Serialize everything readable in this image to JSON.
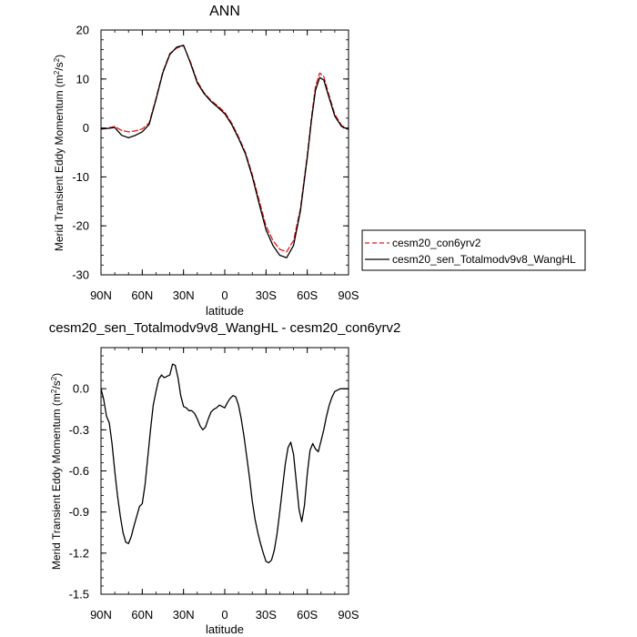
{
  "chart_data": [
    {
      "type": "line",
      "title": "ANN",
      "xlabel": "latitude",
      "ylabel": "Merid Transient Eddy Momentum (m²/s²)",
      "ylabel_main": "Merid Transient Eddy Momentum (m",
      "ylabel_units_sup": "2",
      "ylabel_units_mid": "/s",
      "ylabel_units_sup2": "2",
      "ylabel_units_end": ")",
      "xlim": [
        90,
        -90
      ],
      "ylim": [
        -30,
        20
      ],
      "x_ticks": [
        90,
        60,
        30,
        0,
        -30,
        -60,
        -90
      ],
      "x_tick_labels": [
        "90N",
        "60N",
        "30N",
        "0",
        "30S",
        "60S",
        "90S"
      ],
      "y_ticks": [
        20,
        10,
        0,
        -10,
        -20,
        -30
      ],
      "y_tick_labels": [
        "20",
        "10",
        "0",
        "-10",
        "-20",
        "-30"
      ],
      "legend_position": "right-outside",
      "series": [
        {
          "name": "cesm20_con6yrv2",
          "color": "#e41a1c",
          "dash": "dashed",
          "x": [
            90,
            85,
            80,
            75,
            70,
            65,
            60,
            55,
            50,
            45,
            40,
            35,
            30,
            25,
            20,
            15,
            10,
            5,
            0,
            -5,
            -10,
            -15,
            -20,
            -25,
            -30,
            -35,
            -40,
            -45,
            -50,
            -55,
            -60,
            -63,
            -66,
            -69,
            -72,
            -75,
            -80,
            -85,
            -90
          ],
          "values": [
            -0.2,
            0.0,
            0.3,
            -0.5,
            -0.8,
            -0.6,
            -0.2,
            1.0,
            6.0,
            11.5,
            15.2,
            16.3,
            16.8,
            13.5,
            9.5,
            7.2,
            5.6,
            4.5,
            3.2,
            1.0,
            -1.8,
            -5.0,
            -9.5,
            -14.8,
            -20.0,
            -23.0,
            -24.8,
            -25.3,
            -23.0,
            -16.5,
            -5.5,
            2.0,
            8.5,
            11.2,
            10.5,
            7.5,
            2.8,
            0.5,
            -0.3
          ]
        },
        {
          "name": "cesm20_sen_Totalmodv9v8_WangHL",
          "color": "#000000",
          "dash": "solid",
          "x": [
            90,
            85,
            80,
            75,
            70,
            65,
            60,
            55,
            50,
            45,
            40,
            35,
            30,
            25,
            20,
            15,
            10,
            5,
            0,
            -5,
            -10,
            -15,
            -20,
            -25,
            -30,
            -35,
            -40,
            -45,
            -50,
            -55,
            -60,
            -63,
            -66,
            -69,
            -72,
            -75,
            -80,
            -85,
            -90
          ],
          "values": [
            -0.2,
            -0.1,
            0.1,
            -1.5,
            -2.0,
            -1.5,
            -0.8,
            0.7,
            5.8,
            11.3,
            15.0,
            16.5,
            16.9,
            13.3,
            9.2,
            7.0,
            5.4,
            4.2,
            2.9,
            0.7,
            -2.1,
            -5.3,
            -9.9,
            -15.5,
            -20.8,
            -24.0,
            -26.0,
            -26.5,
            -24.0,
            -17.0,
            -6.0,
            1.5,
            7.7,
            10.3,
            9.8,
            7.0,
            2.4,
            0.3,
            -0.3
          ]
        }
      ]
    },
    {
      "type": "line",
      "title": "cesm20_sen_Totalmodv9v8_WangHL - cesm20_con6yrv2",
      "xlabel": "latitude",
      "ylabel": "Merid Transient Eddy Momentum (m²/s²)",
      "ylabel_main": "Merid Transient Eddy Momentum (m",
      "ylabel_units_sup": "2",
      "ylabel_units_mid": "/s",
      "ylabel_units_sup2": "2",
      "ylabel_units_end": ")",
      "xlim": [
        90,
        -90
      ],
      "ylim": [
        -1.5,
        0.3
      ],
      "x_ticks": [
        90,
        60,
        30,
        0,
        -30,
        -60,
        -90
      ],
      "x_tick_labels": [
        "90N",
        "60N",
        "30N",
        "0",
        "30S",
        "60S",
        "90S"
      ],
      "y_ticks": [
        0.0,
        -0.3,
        -0.6,
        -0.9,
        -1.2,
        -1.5
      ],
      "y_tick_labels": [
        "0.0",
        "-0.3",
        "-0.6",
        "-0.9",
        "-1.2",
        "-1.5"
      ],
      "series": [
        {
          "color": "#000000",
          "dash": "solid",
          "x": [
            90,
            88,
            86,
            84,
            82,
            80,
            78,
            76,
            74,
            72,
            70,
            68,
            66,
            64,
            62,
            60,
            58,
            56,
            54,
            52,
            50,
            48,
            46,
            44,
            42,
            40,
            38,
            36,
            34,
            32,
            30,
            28,
            26,
            24,
            22,
            20,
            18,
            16,
            14,
            12,
            10,
            8,
            6,
            4,
            2,
            0,
            -2,
            -4,
            -6,
            -8,
            -10,
            -12,
            -14,
            -16,
            -18,
            -20,
            -22,
            -24,
            -26,
            -28,
            -30,
            -32,
            -34,
            -36,
            -38,
            -40,
            -42,
            -44,
            -46,
            -48,
            -50,
            -52,
            -54,
            -56,
            -58,
            -60,
            -62,
            -64,
            -66,
            -68,
            -70,
            -72,
            -74,
            -76,
            -78,
            -80,
            -82,
            -84,
            -86,
            -88,
            -90
          ],
          "values": [
            0.0,
            -0.08,
            -0.2,
            -0.25,
            -0.4,
            -0.6,
            -0.78,
            -0.93,
            -1.05,
            -1.12,
            -1.13,
            -1.08,
            -1.0,
            -0.93,
            -0.86,
            -0.84,
            -0.7,
            -0.5,
            -0.3,
            -0.12,
            -0.02,
            0.07,
            0.1,
            0.08,
            0.09,
            0.1,
            0.18,
            0.17,
            0.08,
            -0.05,
            -0.13,
            -0.14,
            -0.16,
            -0.16,
            -0.18,
            -0.22,
            -0.27,
            -0.3,
            -0.28,
            -0.22,
            -0.17,
            -0.15,
            -0.14,
            -0.12,
            -0.13,
            -0.14,
            -0.1,
            -0.07,
            -0.05,
            -0.06,
            -0.12,
            -0.22,
            -0.35,
            -0.5,
            -0.65,
            -0.82,
            -0.95,
            -1.05,
            -1.13,
            -1.2,
            -1.26,
            -1.27,
            -1.25,
            -1.18,
            -1.06,
            -0.9,
            -0.72,
            -0.55,
            -0.43,
            -0.39,
            -0.48,
            -0.68,
            -0.88,
            -0.97,
            -0.85,
            -0.62,
            -0.45,
            -0.4,
            -0.44,
            -0.46,
            -0.38,
            -0.3,
            -0.2,
            -0.12,
            -0.06,
            -0.02,
            -0.01,
            0.0,
            0.0,
            0.0,
            0.0
          ]
        }
      ]
    }
  ]
}
